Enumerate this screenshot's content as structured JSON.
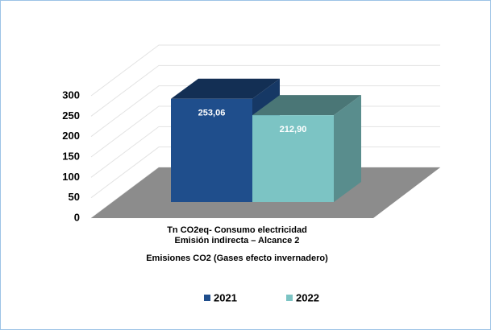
{
  "chart_data": {
    "type": "bar3d",
    "title": "Emisiones CO2 (Gases efecto invernadero)",
    "x_label": [
      "Tn CO2eq- Consumo electricidad",
      "Emisión indirecta – Alcance 2"
    ],
    "categories": [
      null
    ],
    "series": [
      {
        "name": "2021",
        "color": "#1f4e8c",
        "values": [
          253.06
        ],
        "value_labels": [
          "253,06"
        ]
      },
      {
        "name": "2022",
        "color": "#7cc4c4",
        "values": [
          212.9
        ],
        "value_labels": [
          "212,90"
        ]
      }
    ],
    "ylim": [
      0,
      300
    ],
    "yticks": [
      0,
      50,
      100,
      150,
      200,
      250,
      300
    ],
    "grid": true
  }
}
